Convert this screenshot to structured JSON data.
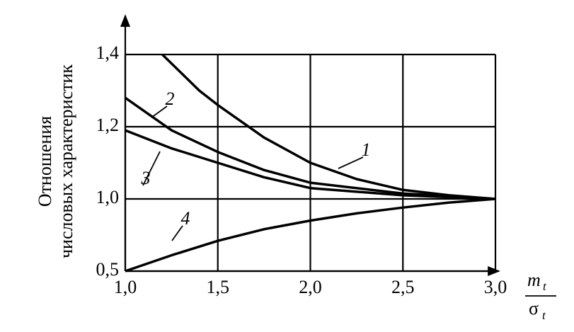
{
  "chart_data": {
    "type": "line",
    "ylabel": [
      "Отношения",
      "числовых характеристик"
    ],
    "xlabel": {
      "numerator": "m",
      "numerator_sub": "t",
      "denominator": "σ",
      "denominator_sub": "t"
    },
    "xlim": [
      1.0,
      3.0
    ],
    "xticks": [
      {
        "value": 1.0,
        "label": "1,0"
      },
      {
        "value": 1.5,
        "label": "1,5"
      },
      {
        "value": 2.0,
        "label": "2,0"
      },
      {
        "value": 2.5,
        "label": "2,5"
      },
      {
        "value": 3.0,
        "label": "3,0"
      }
    ],
    "ylim": [
      0.5,
      1.4
    ],
    "yscale": "piecewise",
    "yticks": [
      {
        "value": 0.5,
        "label": "0,5"
      },
      {
        "value": 1.0,
        "label": "1,0"
      },
      {
        "value": 1.2,
        "label": "1,2"
      },
      {
        "value": 1.4,
        "label": "1,4"
      }
    ],
    "grid": true,
    "series": [
      {
        "name": "1",
        "color": "#000000",
        "x": [
          1.2,
          1.3,
          1.4,
          1.5,
          1.75,
          2.0,
          2.25,
          2.5,
          2.75,
          3.0
        ],
        "values": [
          1.4,
          1.35,
          1.3,
          1.26,
          1.17,
          1.1,
          1.055,
          1.025,
          1.01,
          1.0
        ]
      },
      {
        "name": "2",
        "color": "#000000",
        "x": [
          1.0,
          1.25,
          1.5,
          1.75,
          2.0,
          2.5,
          3.0
        ],
        "values": [
          1.28,
          1.19,
          1.13,
          1.08,
          1.045,
          1.015,
          1.0
        ]
      },
      {
        "name": "3",
        "color": "#000000",
        "x": [
          1.0,
          1.25,
          1.5,
          1.75,
          2.0,
          2.5,
          3.0
        ],
        "values": [
          1.19,
          1.14,
          1.1,
          1.06,
          1.03,
          1.01,
          1.0
        ]
      },
      {
        "name": "4",
        "color": "#000000",
        "x": [
          1.0,
          1.25,
          1.5,
          1.75,
          2.0,
          2.25,
          2.5,
          2.75,
          3.0
        ],
        "values": [
          0.5,
          0.61,
          0.71,
          0.79,
          0.85,
          0.9,
          0.94,
          0.975,
          1.0
        ]
      }
    ]
  }
}
